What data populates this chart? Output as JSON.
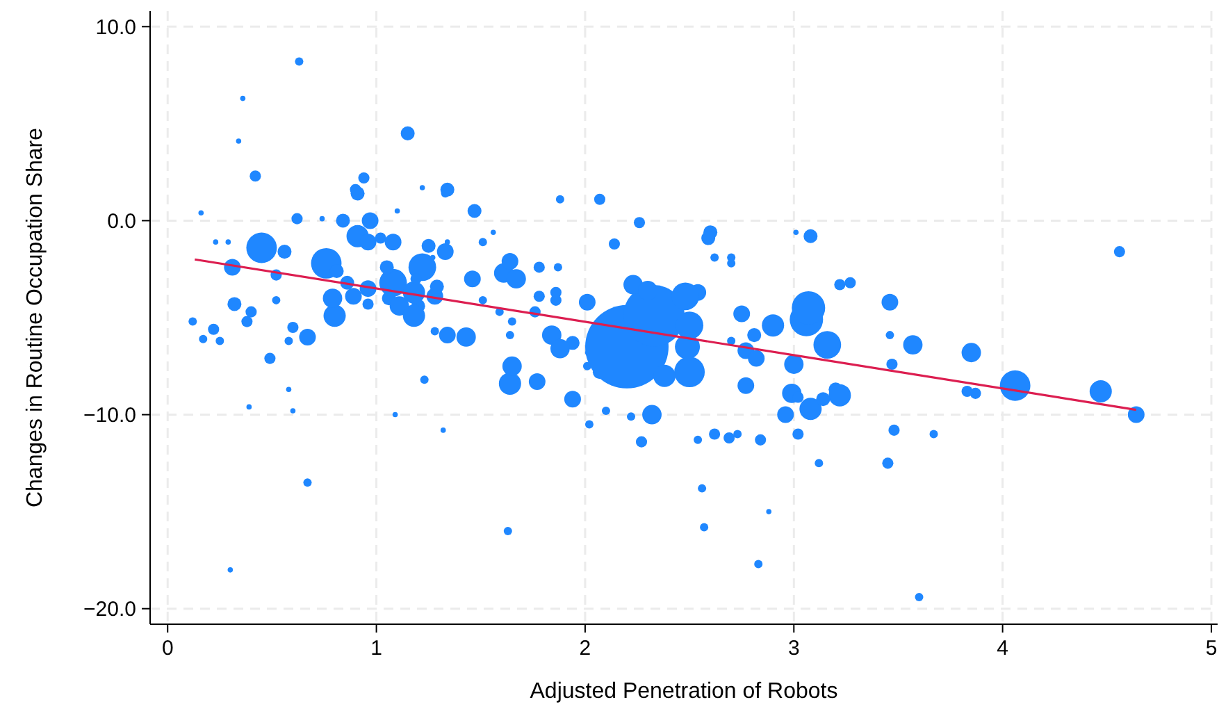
{
  "chart_data": {
    "type": "bubble",
    "xlabel": "Adjusted Penetration of Robots",
    "ylabel": "Changes in Routine Occupation Share",
    "xlim": [
      -0.084,
      5.03
    ],
    "ylim": [
      -20.8,
      10.8
    ],
    "xticks": [
      0,
      1,
      2,
      3,
      4,
      5
    ],
    "yticks": [
      {
        "value": 10,
        "label": "10.0"
      },
      {
        "value": 0,
        "label": "0.0"
      },
      {
        "value": -10,
        "label": "−10.0"
      },
      {
        "value": -20,
        "label": "−20.0"
      }
    ],
    "grid": true,
    "series": [
      {
        "color": "#1f87ff",
        "x": [
          0.16,
          0.36,
          0.34,
          0.42,
          0.63,
          1.15,
          0.62,
          0.45,
          0.31,
          0.23,
          0.29,
          0.76,
          0.56,
          0.74,
          0.84,
          0.91,
          0.94,
          0.9,
          0.97,
          0.91,
          0.96,
          1.02,
          1.08,
          1.1,
          1.22,
          1.33,
          1.34,
          1.47,
          1.61,
          1.25,
          1.22,
          1.33,
          1.34,
          1.27,
          1.56,
          1.51,
          1.88,
          2.07,
          2.26,
          2.14,
          1.87,
          1.78,
          1.64,
          1.67,
          1.78,
          2.01,
          1.86,
          2.54,
          2.62,
          2.6,
          2.59,
          2.7,
          2.7,
          3.01,
          3.08,
          3.22,
          3.27,
          3.46,
          4.56,
          3.57,
          3.46,
          3.47,
          3.85,
          3.87,
          3.83,
          4.06,
          4.47,
          4.64,
          3.48,
          3.45,
          3.67,
          3.6,
          2.84,
          3.12,
          3.02,
          2.73,
          2.69,
          2.62,
          2.54,
          2.56,
          2.83,
          2.88,
          2.57,
          2.27,
          2.22,
          2.1,
          2.02,
          2.32,
          1.94,
          2.07,
          1.77,
          1.64,
          1.65,
          1.64,
          1.43,
          1.28,
          1.23,
          1.32,
          1.09,
          1.63,
          0.6,
          0.39,
          0.58,
          0.67,
          0.3,
          0.67,
          0.6,
          0.38,
          0.22,
          0.17,
          0.25,
          0.12,
          0.49,
          0.58,
          0.4,
          0.32,
          0.52,
          0.52,
          0.8,
          0.79,
          0.89,
          0.81,
          0.86,
          0.96,
          0.96,
          1.06,
          1.08,
          1.05,
          1.11,
          1.2,
          1.18,
          1.18,
          1.28,
          1.29,
          1.19,
          1.34,
          1.46,
          1.51,
          1.59,
          1.65,
          1.86,
          2.02,
          1.94,
          1.84,
          1.88,
          2.2,
          2.33,
          2.23,
          2.3,
          2.49,
          2.5,
          2.5,
          2.38,
          2.75,
          2.77,
          2.7,
          2.81,
          2.9,
          2.77,
          3.0,
          2.99,
          3.06,
          3.07,
          3.16,
          3.08,
          2.96,
          3.02,
          3.2,
          3.22,
          3.14,
          2.82,
          2.48,
          1.76,
          2.01
        ],
        "values": [
          0.4,
          6.3,
          4.1,
          2.3,
          8.2,
          4.5,
          0.1,
          -1.4,
          -2.4,
          -1.1,
          -1.1,
          -2.2,
          -1.6,
          0.1,
          0.0,
          1.4,
          2.2,
          1.6,
          0.0,
          -0.8,
          -1.1,
          -0.9,
          -1.1,
          0.5,
          1.7,
          1.4,
          1.6,
          0.5,
          -2.7,
          -1.3,
          -2.4,
          -1.6,
          -1.1,
          -1.9,
          -0.6,
          -1.1,
          1.1,
          1.1,
          -0.1,
          -1.2,
          -2.4,
          -2.4,
          -2.1,
          -3.0,
          -3.9,
          -4.2,
          -3.7,
          -3.7,
          -1.9,
          -0.6,
          -0.9,
          -1.9,
          -2.2,
          -0.6,
          -0.8,
          -3.3,
          -3.2,
          -4.2,
          -1.6,
          -6.4,
          -5.9,
          -7.4,
          -6.8,
          -8.9,
          -8.8,
          -8.5,
          -8.8,
          -10.0,
          -10.8,
          -12.5,
          -11.0,
          -19.4,
          -11.3,
          -12.5,
          -11.0,
          -11.0,
          -11.2,
          -11.0,
          -11.3,
          -13.8,
          -17.7,
          -15.0,
          -15.8,
          -11.4,
          -10.1,
          -9.8,
          -10.5,
          -10.0,
          -9.2,
          -7.8,
          -8.3,
          -8.4,
          -7.5,
          -5.9,
          -6.0,
          -5.7,
          -8.2,
          -10.8,
          -10.0,
          -16.0,
          -9.8,
          -9.6,
          -8.7,
          -13.5,
          -18.0,
          -6.0,
          -5.5,
          -5.2,
          -5.6,
          -6.1,
          -6.2,
          -5.2,
          -7.1,
          -6.2,
          -4.7,
          -4.3,
          -4.1,
          -2.8,
          -4.9,
          -4.0,
          -3.9,
          -2.6,
          -3.2,
          -3.5,
          -4.3,
          -4.0,
          -3.2,
          -2.4,
          -4.4,
          -4.4,
          -4.9,
          -3.7,
          -3.9,
          -3.4,
          -3.0,
          -5.9,
          -3.0,
          -4.1,
          -4.7,
          -5.2,
          -4.1,
          -6.8,
          -6.3,
          -5.9,
          -6.6,
          -6.5,
          -4.9,
          -3.3,
          -3.6,
          -6.5,
          -5.4,
          -7.8,
          -8.0,
          -4.8,
          -6.7,
          -6.2,
          -5.9,
          -5.4,
          -8.5,
          -7.4,
          -8.9,
          -5.1,
          -4.5,
          -6.4,
          -9.7,
          -10.0,
          -9.1,
          -8.7,
          -9.0,
          -9.2,
          -7.1,
          -3.9,
          -4.7,
          -7.5
        ],
        "sizes": [
          0.004,
          0.004,
          0.004,
          0.018,
          0.01,
          0.028,
          0.018,
          0.134,
          0.04,
          0.004,
          0.004,
          0.134,
          0.028,
          0.004,
          0.028,
          0.028,
          0.018,
          0.018,
          0.04,
          0.071,
          0.04,
          0.018,
          0.04,
          0.004,
          0.004,
          0.01,
          0.028,
          0.028,
          0.054,
          0.028,
          0.11,
          0.04,
          0.004,
          0.004,
          0.004,
          0.01,
          0.01,
          0.018,
          0.018,
          0.018,
          0.01,
          0.018,
          0.04,
          0.054,
          0.018,
          0.04,
          0.018,
          0.04,
          0.01,
          0.028,
          0.028,
          0.01,
          0.01,
          0.004,
          0.028,
          0.018,
          0.018,
          0.04,
          0.018,
          0.054,
          0.01,
          0.018,
          0.054,
          0.018,
          0.018,
          0.134,
          0.071,
          0.04,
          0.018,
          0.018,
          0.01,
          0.01,
          0.018,
          0.01,
          0.018,
          0.01,
          0.018,
          0.018,
          0.01,
          0.01,
          0.01,
          0.004,
          0.01,
          0.018,
          0.01,
          0.01,
          0.01,
          0.054,
          0.04,
          0.028,
          0.04,
          0.071,
          0.054,
          0.01,
          0.054,
          0.01,
          0.01,
          0.004,
          0.004,
          0.01,
          0.004,
          0.004,
          0.004,
          0.01,
          0.004,
          0.04,
          0.018,
          0.018,
          0.018,
          0.01,
          0.01,
          0.01,
          0.018,
          0.01,
          0.018,
          0.028,
          0.01,
          0.018,
          0.071,
          0.054,
          0.04,
          0.028,
          0.028,
          0.04,
          0.018,
          0.028,
          0.11,
          0.028,
          0.054,
          0.028,
          0.071,
          0.071,
          0.04,
          0.028,
          0.018,
          0.04,
          0.04,
          0.01,
          0.01,
          0.01,
          0.018,
          0.01,
          0.028,
          0.054,
          0.054,
          1,
          0.54,
          0.054,
          0.054,
          0.09,
          0.11,
          0.134,
          0.071,
          0.04,
          0.04,
          0.01,
          0.028,
          0.071,
          0.04,
          0.054,
          0.054,
          0.16,
          0.16,
          0.11,
          0.071,
          0.04,
          0.018,
          0.028,
          0.071,
          0.028,
          0.04,
          0.11,
          0.018,
          0.01
        ]
      },
      {
        "type": "line",
        "color": "#dc1e50",
        "x": [
          0.13,
          4.64
        ],
        "values": [
          -2.0,
          -9.75
        ]
      }
    ]
  }
}
